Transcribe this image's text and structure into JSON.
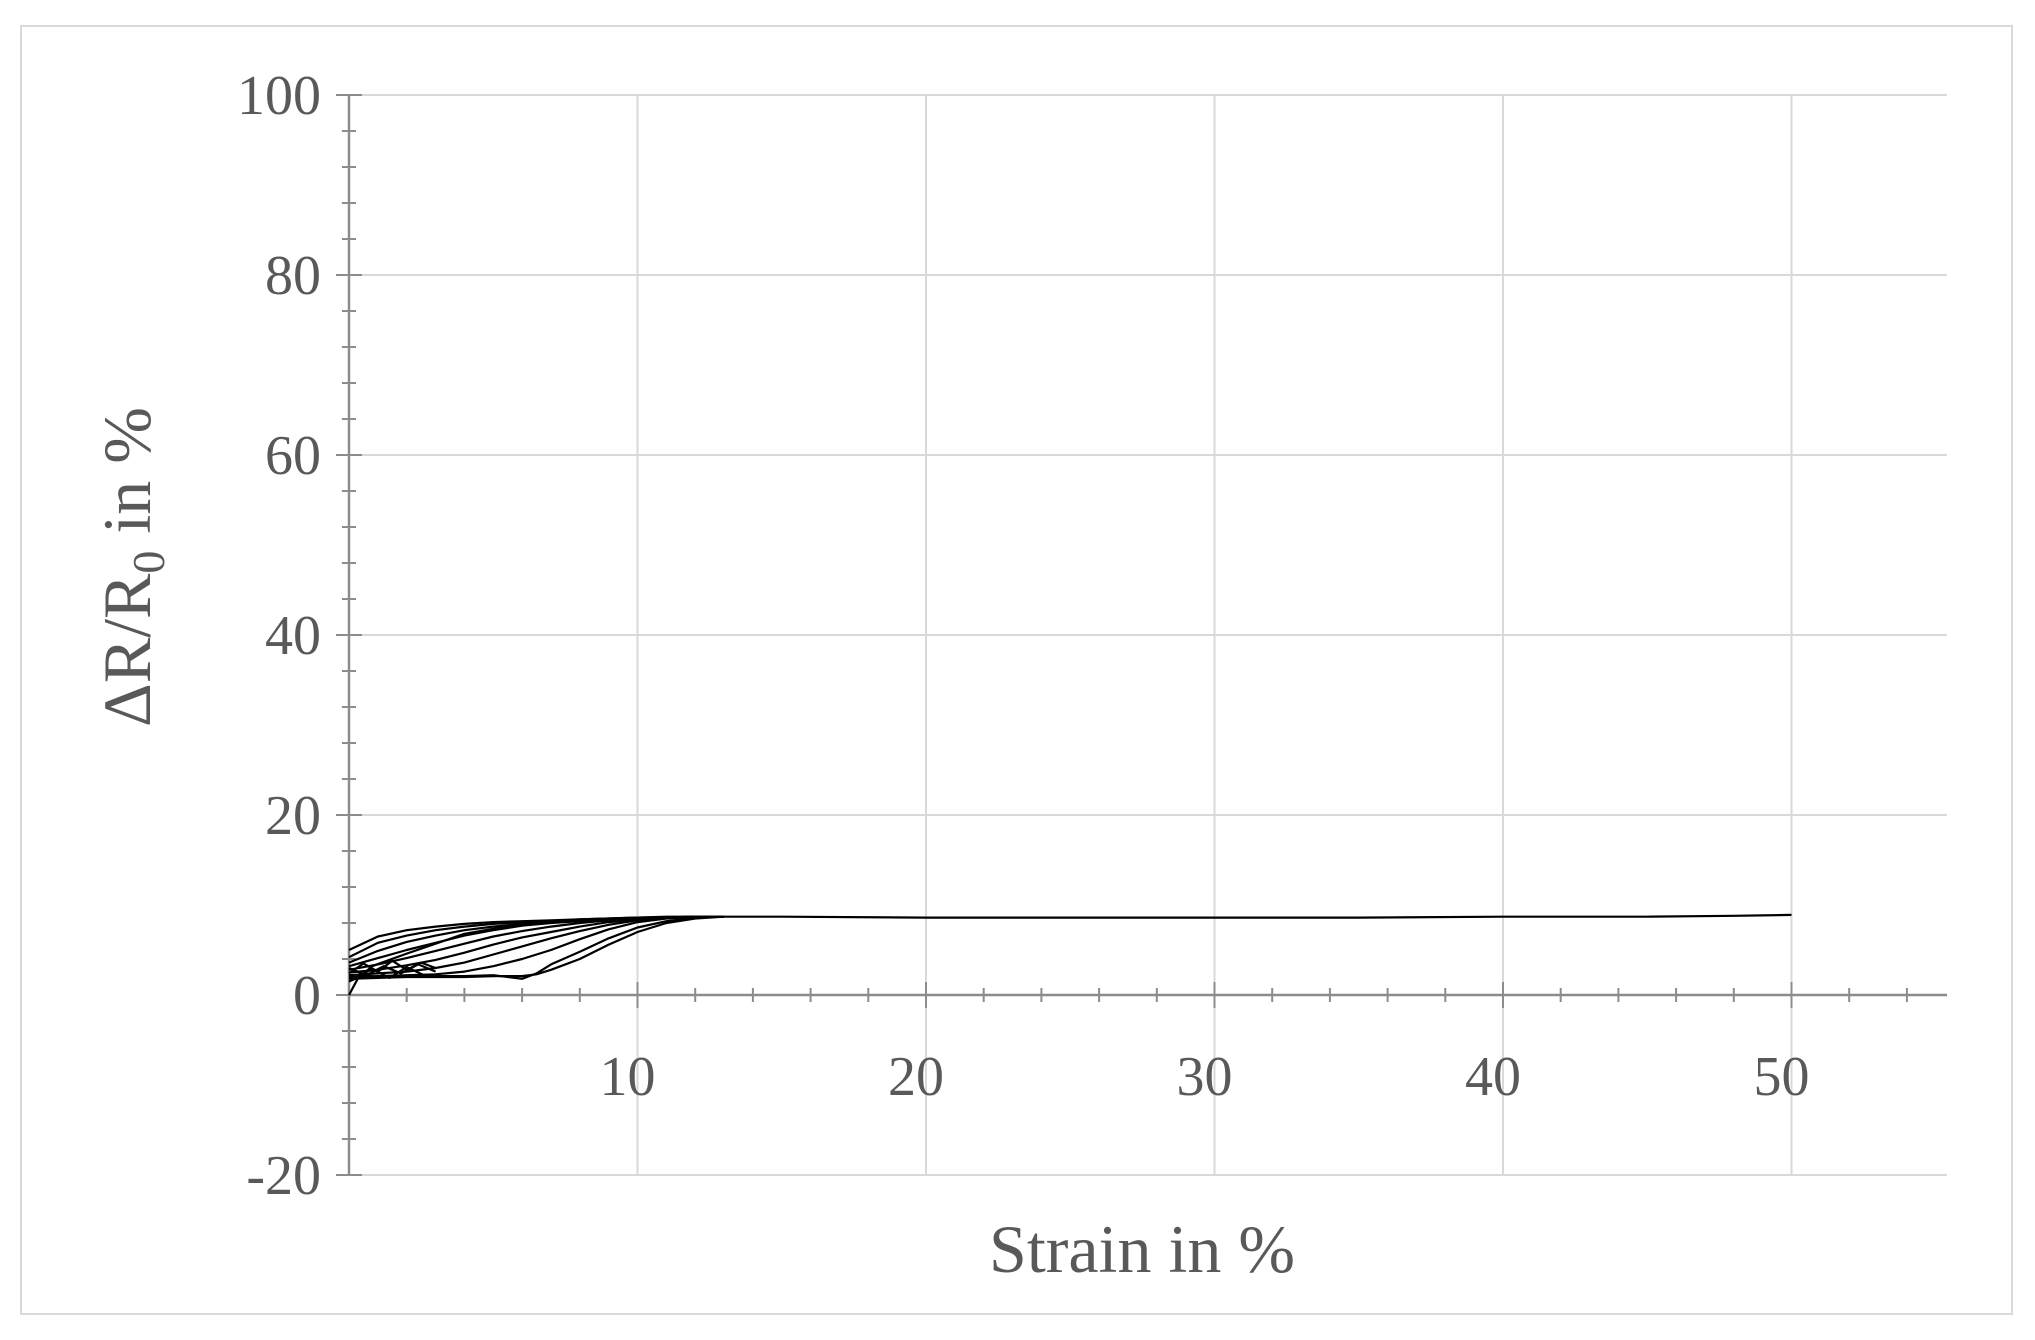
{
  "chart_data": {
    "type": "line",
    "xlabel": "Strain in %",
    "ylabel_main": "ΔR/R",
    "ylabel_sub": "0",
    "ylabel_suffix": " in %",
    "xlim": [
      0,
      55
    ],
    "ylim": [
      -20,
      100
    ],
    "x_ticks": [
      10,
      20,
      30,
      40,
      50
    ],
    "y_ticks": [
      -20,
      0,
      20,
      40,
      60,
      80,
      100
    ],
    "x_minor_step": 2,
    "y_minor_step": 4,
    "grid": true,
    "line_color": "#000000",
    "grid_color": "#d9d9d9",
    "axis_color": "#8c8c8c",
    "series": [
      {
        "x": [
          0,
          0.3,
          0.8,
          2,
          4,
          6,
          8,
          10,
          12,
          15,
          20,
          25,
          30,
          35,
          40,
          45,
          48,
          50
        ],
        "y": [
          0,
          1.8,
          3.2,
          4.6,
          6.8,
          7.9,
          8.3,
          8.6,
          8.7,
          8.7,
          8.6,
          8.6,
          8.6,
          8.6,
          8.7,
          8.7,
          8.8,
          8.9
        ]
      },
      {
        "x": [
          0,
          1,
          2,
          3,
          4,
          5,
          6,
          7,
          8,
          9,
          10,
          11,
          12,
          13
        ],
        "y": [
          5,
          6.5,
          7.2,
          7.6,
          7.9,
          8.1,
          8.2,
          8.3,
          8.4,
          8.5,
          8.6,
          8.7,
          8.7,
          8.7
        ]
      },
      {
        "x": [
          0,
          1,
          2,
          3,
          4,
          5,
          6,
          7,
          8,
          9,
          10,
          11,
          12,
          13
        ],
        "y": [
          4.2,
          5.8,
          6.6,
          7.2,
          7.6,
          7.9,
          8.1,
          8.2,
          8.4,
          8.5,
          8.6,
          8.6,
          8.7,
          8.7
        ]
      },
      {
        "x": [
          0,
          1,
          2,
          3,
          4,
          5,
          6,
          7,
          8,
          9,
          10,
          11,
          12,
          13
        ],
        "y": [
          3.6,
          4.9,
          5.9,
          6.6,
          7.2,
          7.6,
          7.9,
          8.1,
          8.3,
          8.4,
          8.5,
          8.6,
          8.7,
          8.7
        ]
      },
      {
        "x": [
          0,
          1,
          2,
          3,
          4,
          5,
          6,
          7,
          8,
          9,
          10,
          11,
          12,
          13
        ],
        "y": [
          3.2,
          4.1,
          5.0,
          5.8,
          6.6,
          7.2,
          7.7,
          8.0,
          8.2,
          8.4,
          8.5,
          8.6,
          8.7,
          8.7
        ]
      },
      {
        "x": [
          0,
          1,
          2,
          3,
          4,
          5,
          6,
          7,
          8,
          9,
          10,
          11,
          12,
          13
        ],
        "y": [
          2.8,
          3.4,
          4.1,
          4.9,
          5.7,
          6.5,
          7.1,
          7.6,
          8.0,
          8.3,
          8.5,
          8.6,
          8.7,
          8.7
        ]
      },
      {
        "x": [
          0,
          1,
          2,
          3,
          4,
          5,
          6,
          7,
          8,
          9,
          10,
          11,
          12,
          13
        ],
        "y": [
          2.5,
          2.8,
          3.3,
          3.9,
          4.7,
          5.6,
          6.4,
          7.0,
          7.6,
          8.1,
          8.4,
          8.6,
          8.7,
          8.7
        ]
      },
      {
        "x": [
          0,
          1,
          2,
          3,
          4,
          5,
          6,
          7,
          8,
          9,
          10,
          11,
          12,
          13
        ],
        "y": [
          2.2,
          2.4,
          2.6,
          3.0,
          3.6,
          4.5,
          5.4,
          6.3,
          7.1,
          7.8,
          8.3,
          8.6,
          8.7,
          8.7
        ]
      },
      {
        "x": [
          0,
          1,
          2,
          3,
          4,
          5,
          6,
          7,
          8,
          9,
          10,
          11,
          12,
          13
        ],
        "y": [
          2.0,
          2.1,
          2.2,
          2.3,
          2.6,
          3.2,
          4.0,
          5.0,
          6.2,
          7.3,
          8.1,
          8.5,
          8.7,
          8.7
        ]
      },
      {
        "x": [
          0,
          1,
          2,
          3,
          4,
          5,
          6,
          6.5,
          7,
          8,
          9,
          10,
          11,
          12,
          13
        ],
        "y": [
          1.8,
          1.9,
          2.0,
          2.0,
          2.0,
          2.1,
          2.1,
          2.3,
          2.8,
          4.0,
          5.6,
          7.0,
          8.0,
          8.5,
          8.7
        ]
      },
      {
        "x": [
          0,
          0.5,
          1,
          2,
          3,
          4,
          5,
          6,
          6.5,
          7,
          8,
          9,
          10,
          11,
          12,
          13
        ],
        "y": [
          1.5,
          2.2,
          2.0,
          2.1,
          2.1,
          2.1,
          2.2,
          1.8,
          2.4,
          3.4,
          4.8,
          6.3,
          7.5,
          8.2,
          8.6,
          8.7
        ]
      },
      {
        "x": [
          0,
          0.5,
          1,
          1.5,
          2,
          2.5,
          3
        ],
        "y": [
          2.4,
          3.5,
          2.6,
          3.8,
          2.8,
          3.6,
          3.0
        ]
      },
      {
        "x": [
          0,
          0.6,
          1.2,
          1.8,
          2.4,
          3.0
        ],
        "y": [
          3.0,
          2.2,
          3.2,
          2.4,
          3.4,
          2.6
        ]
      },
      {
        "x": [
          0.2,
          0.8,
          1.4,
          2.0,
          2.6
        ],
        "y": [
          1.8,
          2.9,
          1.9,
          3.1,
          2.2
        ]
      }
    ]
  }
}
